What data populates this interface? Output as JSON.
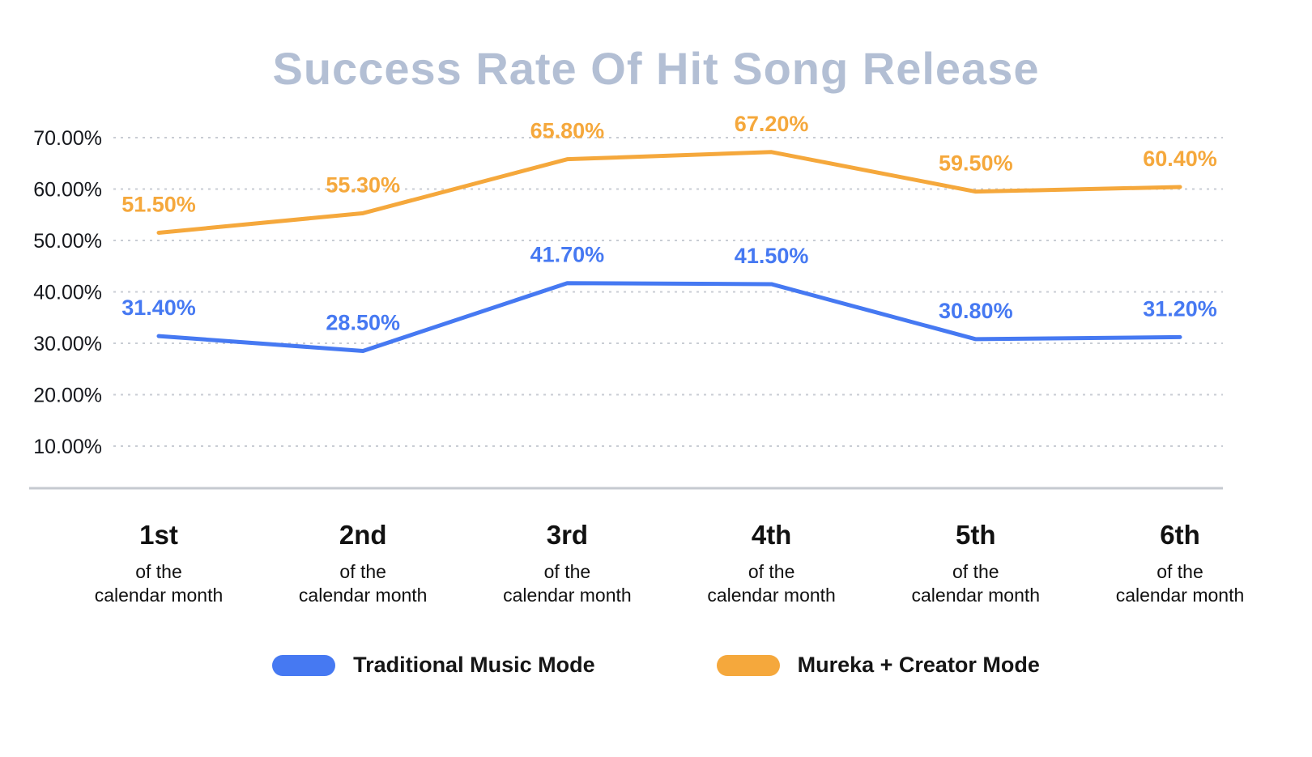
{
  "chart_data": {
    "type": "line",
    "title": "Success Rate Of Hit Song Release",
    "categories": [
      "1st",
      "2nd",
      "3rd",
      "4th",
      "5th",
      "6th"
    ],
    "category_subtitle_lines": [
      "of the",
      "calendar month"
    ],
    "series": [
      {
        "name": "Traditional Music Mode",
        "color": "#4679F2",
        "values": [
          31.4,
          28.5,
          41.7,
          41.5,
          30.8,
          31.2
        ],
        "point_labels": [
          "31.40%",
          "28.50%",
          "41.70%",
          "41.50%",
          "30.80%",
          "31.20%"
        ]
      },
      {
        "name": "Mureka + Creator Mode",
        "color": "#F5A83C",
        "values": [
          51.5,
          55.3,
          65.8,
          67.2,
          59.5,
          60.4
        ],
        "point_labels": [
          "51.50%",
          "55.30%",
          "65.80%",
          "67.20%",
          "59.50%",
          "60.40%"
        ]
      }
    ],
    "ylim": [
      10,
      70
    ],
    "ytick_step": 10,
    "ytick_labels": [
      "10.00%",
      "20.00%",
      "30.00%",
      "40.00%",
      "50.00%",
      "60.00%",
      "70.00%"
    ],
    "grid": "dashed-horizontal",
    "legend_position": "bottom"
  },
  "colors": {
    "title": "#B3BFD4",
    "gridline": "#C9CDD4",
    "axis_line": "#C6CAD0",
    "tick_text": "#16181D",
    "category_text": "#111111",
    "blue_series": "#4679F2",
    "orange_series": "#F5A83C"
  }
}
